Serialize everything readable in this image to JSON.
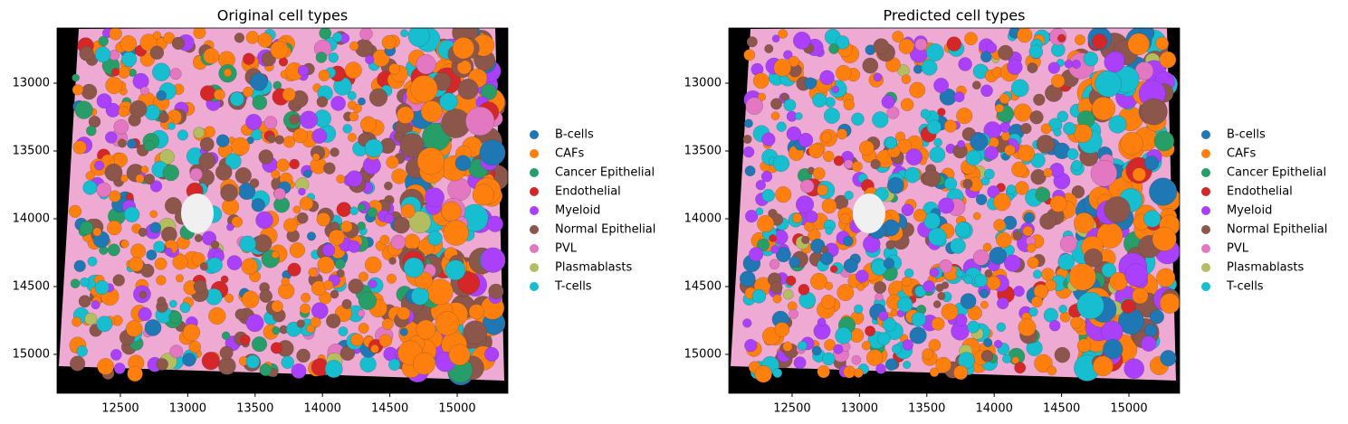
{
  "chart_data": [
    {
      "type": "scatter",
      "title": "Original cell types",
      "xlim": [
        12030,
        15376
      ],
      "ylim": [
        12593,
        15287
      ],
      "y_inverted": true,
      "xticks": [
        12500,
        13000,
        13500,
        14000,
        14500,
        15000
      ],
      "yticks": [
        13000,
        13500,
        14000,
        14500,
        15000
      ],
      "legend": "right",
      "series": [
        {
          "name": "B-cells",
          "color": "#1f77b4"
        },
        {
          "name": "CAFs",
          "color": "#ff7f0e"
        },
        {
          "name": "Cancer Epithelial",
          "color": "#279e68"
        },
        {
          "name": "Endothelial",
          "color": "#d62728"
        },
        {
          "name": "Myeloid",
          "color": "#aa40fc"
        },
        {
          "name": "Normal Epithelial",
          "color": "#8c564b"
        },
        {
          "name": "PVL",
          "color": "#e377c2"
        },
        {
          "name": "Plasmablasts",
          "color": "#b5bd61"
        },
        {
          "name": "T-cells",
          "color": "#17becf"
        }
      ]
    },
    {
      "type": "scatter",
      "title": "Predicted cell types",
      "xlim": [
        12030,
        15376
      ],
      "ylim": [
        12593,
        15287
      ],
      "y_inverted": true,
      "xticks": [
        12500,
        13000,
        13500,
        14000,
        14500,
        15000
      ],
      "yticks": [
        13000,
        13500,
        14000,
        14500,
        15000
      ],
      "legend": "right",
      "series": [
        {
          "name": "B-cells",
          "color": "#1f77b4"
        },
        {
          "name": "CAFs",
          "color": "#ff7f0e"
        },
        {
          "name": "Cancer Epithelial",
          "color": "#279e68"
        },
        {
          "name": "Endothelial",
          "color": "#d62728"
        },
        {
          "name": "Myeloid",
          "color": "#aa40fc"
        },
        {
          "name": "Normal Epithelial",
          "color": "#8c564b"
        },
        {
          "name": "PVL",
          "color": "#e377c2"
        },
        {
          "name": "Plasmablasts",
          "color": "#b5bd61"
        },
        {
          "name": "T-cells",
          "color": "#17becf"
        }
      ]
    }
  ]
}
